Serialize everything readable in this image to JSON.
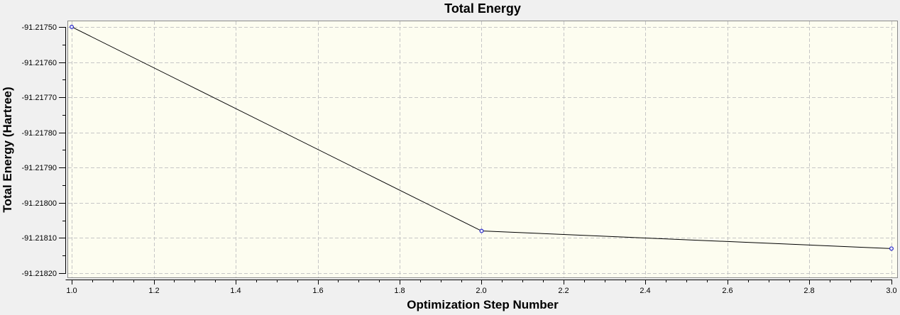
{
  "window": {
    "background": "#f0f0f0"
  },
  "chart_data": {
    "type": "line",
    "title": "Total Energy",
    "xlabel": "Optimization Step Number",
    "ylabel": "Total Energy (Hartree)",
    "series": [
      {
        "name": "Total Energy",
        "x": [
          1.0,
          2.0,
          3.0
        ],
        "y": [
          -91.2175,
          -91.21808,
          -91.21813
        ]
      }
    ],
    "xlim": [
      0.9913,
      3.0139
    ],
    "ylim": [
      -91.218212,
      -91.217484
    ],
    "x_ticks": {
      "values": [
        1.0,
        1.2,
        1.4,
        1.6,
        1.8,
        2.0,
        2.2,
        2.4,
        2.6,
        2.8,
        3.0
      ],
      "labels": [
        "1.0",
        "1.2",
        "1.4",
        "1.6",
        "1.8",
        "2.0",
        "2.2",
        "2.4",
        "2.6",
        "2.8",
        "3.0"
      ],
      "minor_step": 0.05
    },
    "y_ticks": {
      "values": [
        -91.2175,
        -91.2176,
        -91.2177,
        -91.2178,
        -91.2179,
        -91.218,
        -91.2181,
        -91.2182
      ],
      "labels": [
        "-91.21750",
        "-91.21760",
        "-91.21770",
        "-91.21780",
        "-91.21790",
        "-91.21800",
        "-91.21810",
        "-91.21820"
      ],
      "minor_step": 5e-05
    },
    "grid": true,
    "legend": "none",
    "colors": {
      "background": "#f0f0f0",
      "plot_background": "#fdfdf0",
      "grid": "#c6c6c6",
      "frame": "#8a8a8a",
      "axis": "#000000",
      "series_line": "#000000",
      "marker_stroke": "#2a2ac8",
      "marker_fill": "#eeeeff",
      "text": "#000000"
    }
  }
}
